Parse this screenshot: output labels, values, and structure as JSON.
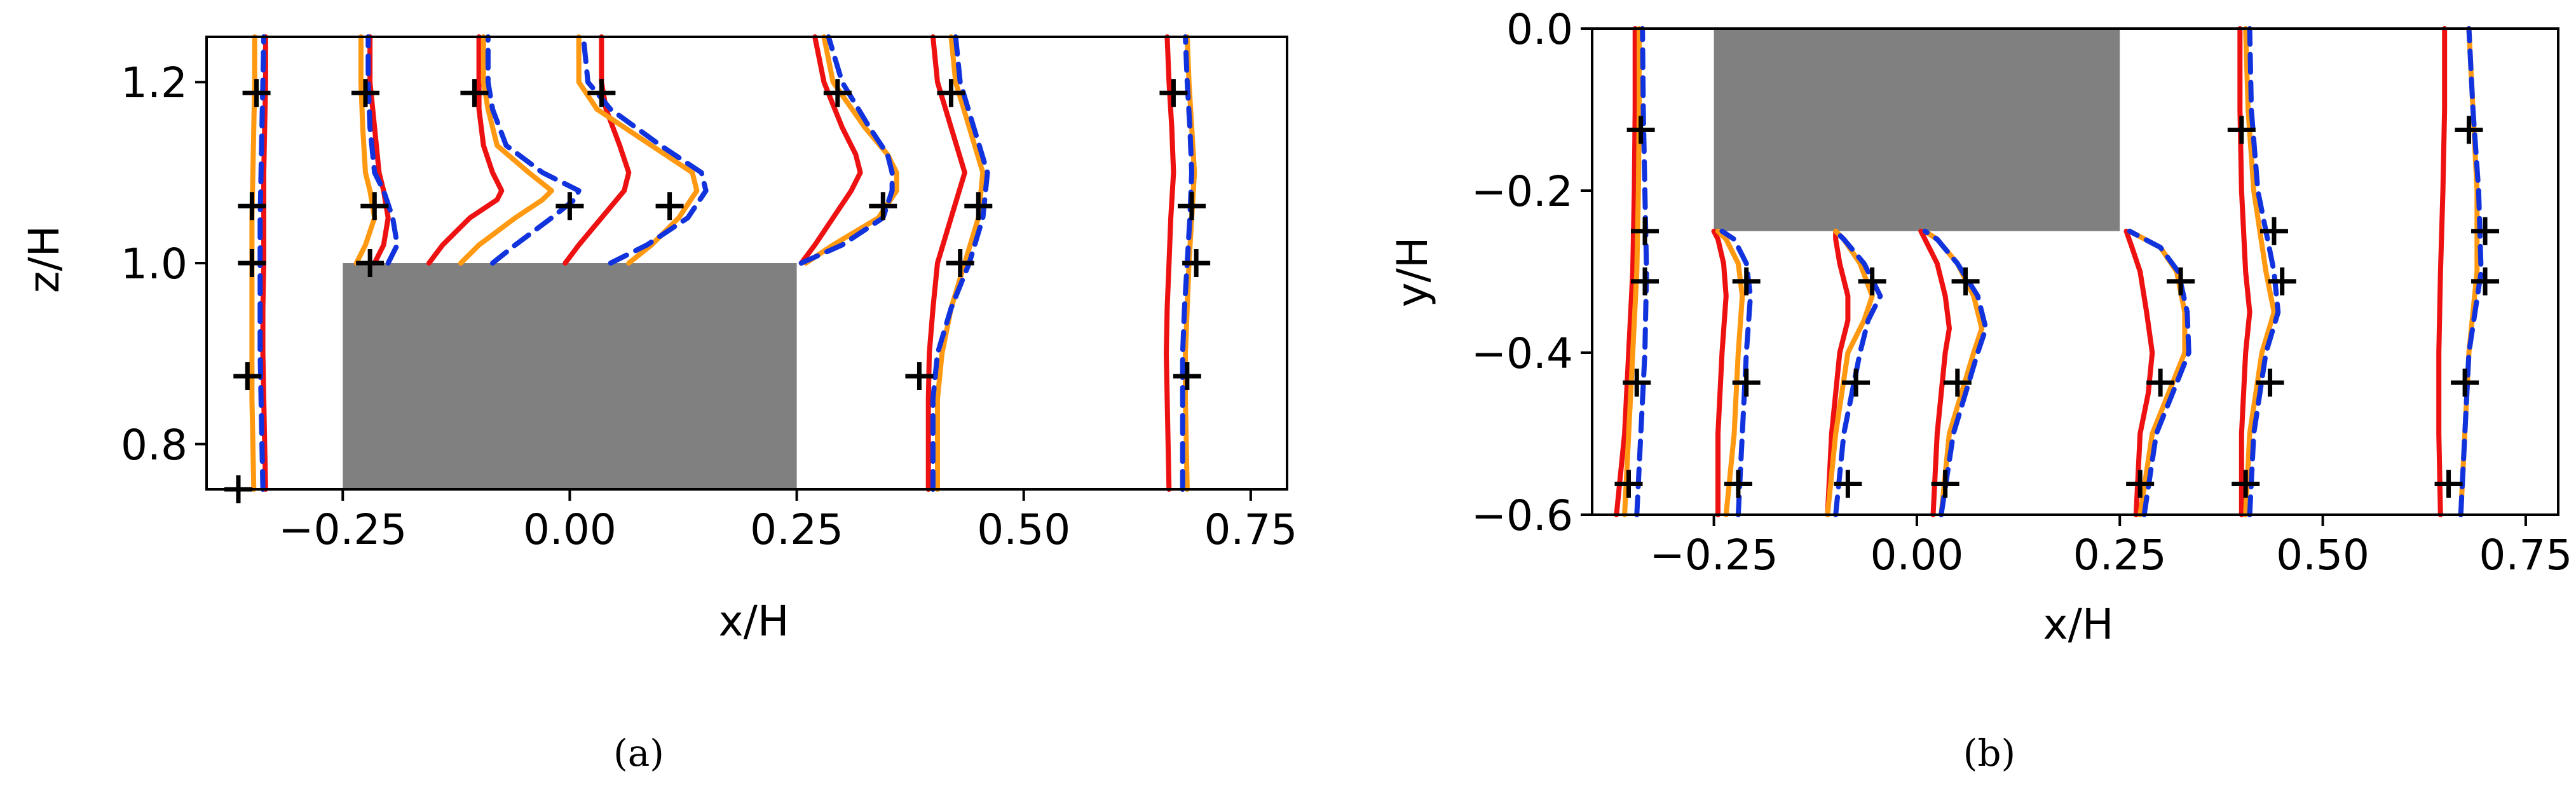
{
  "chart_data": [
    {
      "type": "line",
      "panel": "(a)",
      "xlabel": "x/H",
      "ylabel": "z/H",
      "xlim": [
        -0.4,
        0.79
      ],
      "ylim": [
        0.75,
        1.25
      ],
      "xticks": [
        -0.25,
        0.0,
        0.25,
        0.5,
        0.75
      ],
      "xtick_labels": [
        "−0.25",
        "0.00",
        "0.25",
        "0.50",
        "0.75"
      ],
      "yticks": [
        0.8,
        1.0,
        1.2
      ],
      "ytick_labels": [
        "0.8",
        "1.0",
        "1.2"
      ],
      "obstacle": {
        "x0": -0.25,
        "x1": 0.25,
        "y0": 0.75,
        "y1": 1.0,
        "color": "#808080"
      },
      "series_style": [
        {
          "color": "#ee1111",
          "dash": ""
        },
        {
          "color": "#ff9911",
          "dash": ""
        },
        {
          "color": "#1133dd",
          "dash": "28,16"
        }
      ],
      "profiles": [
        {
          "y": [
            0.75,
            0.8,
            0.85,
            0.9,
            0.95,
            1.0,
            1.05,
            1.1,
            1.15,
            1.2,
            1.25
          ],
          "series": [
            [
              -0.335,
              -0.336,
              -0.337,
              -0.338,
              -0.338,
              -0.337,
              -0.337,
              -0.337,
              -0.336,
              -0.335,
              -0.335
            ],
            [
              -0.348,
              -0.349,
              -0.35,
              -0.35,
              -0.35,
              -0.35,
              -0.35,
              -0.349,
              -0.348,
              -0.347,
              -0.347
            ],
            [
              -0.338,
              -0.339,
              -0.34,
              -0.341,
              -0.341,
              -0.341,
              -0.341,
              -0.34,
              -0.339,
              -0.338,
              -0.337
            ]
          ],
          "markers": [
            [
              -0.365,
              0.75
            ],
            [
              -0.355,
              0.875
            ],
            [
              -0.35,
              1.0
            ],
            [
              -0.35,
              1.063
            ],
            [
              -0.345,
              1.188
            ]
          ]
        },
        {
          "y": [
            1.0,
            1.02,
            1.05,
            1.08,
            1.1,
            1.15,
            1.2,
            1.25
          ],
          "series": [
            [
              -0.215,
              -0.205,
              -0.2,
              -0.205,
              -0.21,
              -0.215,
              -0.22,
              -0.22
            ],
            [
              -0.235,
              -0.225,
              -0.215,
              -0.22,
              -0.225,
              -0.228,
              -0.23,
              -0.23
            ],
            [
              -0.2,
              -0.19,
              -0.195,
              -0.205,
              -0.215,
              -0.22,
              -0.222,
              -0.222
            ]
          ],
          "markers": [
            [
              -0.22,
              1.0
            ],
            [
              -0.215,
              1.063
            ],
            [
              -0.225,
              1.188
            ]
          ]
        },
        {
          "y": [
            1.0,
            1.02,
            1.05,
            1.07,
            1.08,
            1.1,
            1.13,
            1.17,
            1.2,
            1.25
          ],
          "series": [
            [
              -0.155,
              -0.14,
              -0.11,
              -0.08,
              -0.075,
              -0.085,
              -0.095,
              -0.1,
              -0.1,
              -0.1
            ],
            [
              -0.12,
              -0.1,
              -0.06,
              -0.03,
              -0.02,
              -0.045,
              -0.08,
              -0.09,
              -0.095,
              -0.095
            ],
            [
              -0.085,
              -0.06,
              -0.02,
              0.005,
              0.01,
              -0.03,
              -0.07,
              -0.085,
              -0.09,
              -0.09
            ]
          ],
          "markers": [
            [
              0.0,
              1.063
            ],
            [
              -0.105,
              1.188
            ]
          ]
        },
        {
          "y": [
            1.0,
            1.02,
            1.05,
            1.08,
            1.1,
            1.13,
            1.17,
            1.2,
            1.25
          ],
          "series": [
            [
              -0.005,
              0.01,
              0.035,
              0.06,
              0.065,
              0.055,
              0.04,
              0.035,
              0.035
            ],
            [
              0.065,
              0.09,
              0.12,
              0.14,
              0.135,
              0.09,
              0.03,
              0.01,
              0.01
            ],
            [
              0.045,
              0.085,
              0.13,
              0.15,
              0.145,
              0.1,
              0.045,
              0.02,
              0.015
            ]
          ],
          "markers": [
            [
              0.11,
              1.063
            ],
            [
              0.035,
              1.188
            ]
          ]
        },
        {
          "y": [
            1.0,
            1.02,
            1.05,
            1.08,
            1.1,
            1.12,
            1.15,
            1.2,
            1.25
          ],
          "series": [
            [
              0.255,
              0.27,
              0.29,
              0.31,
              0.32,
              0.315,
              0.3,
              0.28,
              0.27
            ],
            [
              0.26,
              0.29,
              0.34,
              0.36,
              0.36,
              0.35,
              0.325,
              0.29,
              0.28
            ],
            [
              0.255,
              0.3,
              0.345,
              0.355,
              0.355,
              0.35,
              0.33,
              0.3,
              0.285
            ]
          ],
          "markers": [
            [
              0.345,
              1.063
            ],
            [
              0.295,
              1.188
            ]
          ]
        },
        {
          "y": [
            0.75,
            0.85,
            0.9,
            0.95,
            1.0,
            1.05,
            1.1,
            1.15,
            1.2,
            1.25
          ],
          "series": [
            [
              0.395,
              0.395,
              0.396,
              0.4,
              0.405,
              0.42,
              0.435,
              0.42,
              0.405,
              0.4
            ],
            [
              0.405,
              0.405,
              0.41,
              0.42,
              0.435,
              0.45,
              0.455,
              0.44,
              0.425,
              0.42
            ],
            [
              0.4,
              0.4,
              0.405,
              0.42,
              0.44,
              0.455,
              0.46,
              0.445,
              0.43,
              0.425
            ]
          ],
          "markers": [
            [
              0.385,
              0.875
            ],
            [
              0.43,
              1.0
            ],
            [
              0.45,
              1.063
            ],
            [
              0.42,
              1.188
            ]
          ]
        },
        {
          "y": [
            0.75,
            0.85,
            0.9,
            0.95,
            1.0,
            1.05,
            1.1,
            1.15,
            1.2,
            1.25
          ],
          "series": [
            [
              0.66,
              0.658,
              0.657,
              0.658,
              0.66,
              0.662,
              0.665,
              0.663,
              0.66,
              0.658
            ],
            [
              0.68,
              0.678,
              0.678,
              0.68,
              0.682,
              0.685,
              0.688,
              0.685,
              0.682,
              0.68
            ],
            [
              0.675,
              0.675,
              0.675,
              0.677,
              0.68,
              0.683,
              0.685,
              0.683,
              0.68,
              0.678
            ]
          ],
          "markers": [
            [
              0.68,
              0.875
            ],
            [
              0.69,
              1.0
            ],
            [
              0.685,
              1.063
            ],
            [
              0.665,
              1.188
            ]
          ]
        }
      ]
    },
    {
      "type": "line",
      "panel": "(b)",
      "xlabel": "x/H",
      "ylabel": "y/H",
      "xlim": [
        -0.4,
        0.79
      ],
      "ylim": [
        -0.6,
        0.0
      ],
      "xticks": [
        -0.25,
        0.0,
        0.25,
        0.5,
        0.75
      ],
      "xtick_labels": [
        "−0.25",
        "0.00",
        "0.25",
        "0.50",
        "0.75"
      ],
      "yticks": [
        -0.6,
        -0.4,
        -0.2,
        0.0
      ],
      "ytick_labels": [
        "−0.6",
        "−0.4",
        "−0.2",
        "0.0"
      ],
      "obstacle": {
        "x0": -0.25,
        "x1": 0.25,
        "y0": -0.25,
        "y1": 0.0,
        "color": "#808080"
      },
      "series_style": [
        {
          "color": "#ee1111",
          "dash": ""
        },
        {
          "color": "#ff9911",
          "dash": ""
        },
        {
          "color": "#1133dd",
          "dash": "28,16"
        }
      ],
      "profiles": [
        {
          "y": [
            -0.6,
            -0.5,
            -0.4,
            -0.3,
            -0.2,
            -0.1,
            0.0
          ],
          "series": [
            [
              -0.37,
              -0.36,
              -0.355,
              -0.35,
              -0.348,
              -0.347,
              -0.347
            ],
            [
              -0.36,
              -0.355,
              -0.35,
              -0.345,
              -0.343,
              -0.342,
              -0.342
            ],
            [
              -0.345,
              -0.34,
              -0.335,
              -0.333,
              -0.335,
              -0.337,
              -0.338
            ]
          ],
          "markers": [
            [
              -0.355,
              -0.562
            ],
            [
              -0.345,
              -0.437
            ],
            [
              -0.335,
              -0.312
            ],
            [
              -0.335,
              -0.25
            ],
            [
              -0.34,
              -0.125
            ]
          ]
        },
        {
          "y": [
            -0.6,
            -0.5,
            -0.4,
            -0.33,
            -0.29,
            -0.26,
            -0.25
          ],
          "series": [
            [
              -0.245,
              -0.245,
              -0.24,
              -0.235,
              -0.238,
              -0.245,
              -0.25
            ],
            [
              -0.235,
              -0.225,
              -0.22,
              -0.215,
              -0.22,
              -0.235,
              -0.245
            ],
            [
              -0.22,
              -0.215,
              -0.21,
              -0.205,
              -0.21,
              -0.225,
              -0.24
            ]
          ],
          "markers": [
            [
              -0.22,
              -0.562
            ],
            [
              -0.21,
              -0.437
            ],
            [
              -0.21,
              -0.312
            ]
          ]
        },
        {
          "y": [
            -0.6,
            -0.5,
            -0.4,
            -0.36,
            -0.33,
            -0.29,
            -0.26,
            -0.25
          ],
          "series": [
            [
              -0.11,
              -0.105,
              -0.095,
              -0.085,
              -0.085,
              -0.095,
              -0.1,
              -0.1
            ],
            [
              -0.11,
              -0.1,
              -0.085,
              -0.065,
              -0.055,
              -0.07,
              -0.09,
              -0.1
            ],
            [
              -0.1,
              -0.09,
              -0.07,
              -0.06,
              -0.045,
              -0.065,
              -0.09,
              -0.1
            ]
          ],
          "markers": [
            [
              -0.085,
              -0.562
            ],
            [
              -0.075,
              -0.437
            ],
            [
              -0.055,
              -0.312
            ]
          ]
        },
        {
          "y": [
            -0.6,
            -0.5,
            -0.4,
            -0.37,
            -0.33,
            -0.29,
            -0.26,
            -0.25
          ],
          "series": [
            [
              0.02,
              0.025,
              0.035,
              0.04,
              0.035,
              0.025,
              0.01,
              0.005
            ],
            [
              0.03,
              0.04,
              0.07,
              0.08,
              0.07,
              0.05,
              0.025,
              0.01
            ],
            [
              0.03,
              0.045,
              0.075,
              0.085,
              0.075,
              0.05,
              0.025,
              0.01
            ]
          ],
          "markers": [
            [
              0.035,
              -0.562
            ],
            [
              0.05,
              -0.437
            ],
            [
              0.06,
              -0.312
            ]
          ]
        },
        {
          "y": [
            -0.6,
            -0.5,
            -0.45,
            -0.4,
            -0.35,
            -0.3,
            -0.27,
            -0.25
          ],
          "series": [
            [
              0.27,
              0.275,
              0.285,
              0.29,
              0.283,
              0.275,
              0.265,
              0.258
            ],
            [
              0.275,
              0.29,
              0.31,
              0.33,
              0.33,
              0.32,
              0.3,
              0.262
            ],
            [
              0.28,
              0.295,
              0.315,
              0.335,
              0.333,
              0.322,
              0.3,
              0.262
            ]
          ],
          "markers": [
            [
              0.275,
              -0.562
            ],
            [
              0.3,
              -0.437
            ],
            [
              0.325,
              -0.312
            ]
          ]
        },
        {
          "y": [
            -0.6,
            -0.5,
            -0.4,
            -0.35,
            -0.3,
            -0.2,
            -0.1,
            0.0
          ],
          "series": [
            [
              0.4,
              0.4,
              0.405,
              0.41,
              0.405,
              0.4,
              0.398,
              0.398
            ],
            [
              0.405,
              0.41,
              0.425,
              0.44,
              0.43,
              0.415,
              0.408,
              0.405
            ],
            [
              0.41,
              0.415,
              0.43,
              0.445,
              0.44,
              0.42,
              0.412,
              0.41
            ]
          ],
          "markers": [
            [
              0.405,
              -0.562
            ],
            [
              0.435,
              -0.437
            ],
            [
              0.45,
              -0.312
            ],
            [
              0.44,
              -0.25
            ],
            [
              0.4,
              -0.125
            ]
          ]
        },
        {
          "y": [
            -0.6,
            -0.5,
            -0.4,
            -0.3,
            -0.2,
            -0.1,
            0.0
          ],
          "series": [
            [
              0.645,
              0.643,
              0.643,
              0.645,
              0.648,
              0.65,
              0.65
            ],
            [
              0.67,
              0.675,
              0.68,
              0.69,
              0.69,
              0.685,
              0.68
            ],
            [
              0.67,
              0.675,
              0.68,
              0.695,
              0.692,
              0.685,
              0.68
            ]
          ],
          "markers": [
            [
              0.655,
              -0.562
            ],
            [
              0.675,
              -0.437
            ],
            [
              0.7,
              -0.312
            ],
            [
              0.7,
              -0.25
            ],
            [
              0.68,
              -0.125
            ]
          ]
        }
      ]
    }
  ],
  "captions": {
    "a": "(a)",
    "b": "(b)"
  }
}
